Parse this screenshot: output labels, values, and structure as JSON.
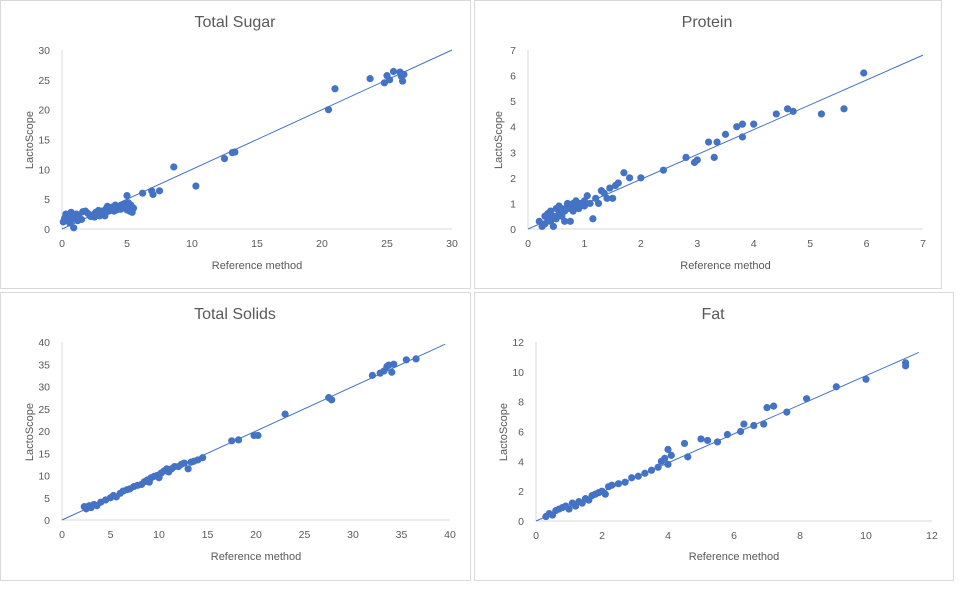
{
  "chart_data": [
    {
      "type": "scatter",
      "title": "Total Sugar",
      "xlabel": "Reference method",
      "ylabel": "LactoScope",
      "xlim": [
        0,
        30
      ],
      "ylim": [
        0,
        30
      ],
      "xticks": [
        0,
        5,
        10,
        15,
        20,
        25,
        30
      ],
      "yticks": [
        0,
        5,
        10,
        15,
        20,
        25,
        30
      ],
      "fit_line": [
        [
          0,
          0
        ],
        [
          30,
          30
        ]
      ],
      "series": [
        {
          "name": "Total Sugar",
          "points": [
            [
              0.1,
              1.2
            ],
            [
              0.2,
              1.8
            ],
            [
              0.3,
              2.5
            ],
            [
              0.4,
              1.5
            ],
            [
              0.5,
              2.2
            ],
            [
              0.6,
              1.0
            ],
            [
              0.7,
              2.8
            ],
            [
              0.8,
              1.6
            ],
            [
              0.9,
              0.2
            ],
            [
              1.0,
              2.0
            ],
            [
              1.1,
              2.5
            ],
            [
              1.2,
              1.4
            ],
            [
              1.3,
              2.3
            ],
            [
              1.5,
              1.6
            ],
            [
              1.6,
              2.9
            ],
            [
              1.8,
              3.0
            ],
            [
              2.0,
              2.6
            ],
            [
              2.2,
              2.1
            ],
            [
              2.4,
              2.4
            ],
            [
              2.5,
              2.0
            ],
            [
              2.6,
              2.8
            ],
            [
              2.7,
              2.5
            ],
            [
              2.8,
              3.1
            ],
            [
              2.9,
              2.2
            ],
            [
              3.0,
              2.6
            ],
            [
              3.1,
              3.0
            ],
            [
              3.2,
              2.8
            ],
            [
              3.3,
              2.2
            ],
            [
              3.4,
              3.4
            ],
            [
              3.5,
              3.8
            ],
            [
              3.6,
              3.0
            ],
            [
              3.7,
              3.2
            ],
            [
              3.8,
              3.5
            ],
            [
              3.9,
              3.7
            ],
            [
              4.0,
              3.0
            ],
            [
              4.1,
              4.0
            ],
            [
              4.2,
              3.2
            ],
            [
              4.3,
              3.5
            ],
            [
              4.4,
              3.6
            ],
            [
              4.5,
              3.3
            ],
            [
              4.6,
              4.0
            ],
            [
              4.7,
              3.8
            ],
            [
              4.8,
              3.5
            ],
            [
              4.9,
              3.4
            ],
            [
              5.0,
              5.6
            ],
            [
              5.1,
              4.4
            ],
            [
              5.2,
              3.0
            ],
            [
              5.3,
              4.0
            ],
            [
              5.4,
              2.8
            ],
            [
              5.5,
              3.5
            ],
            [
              4.8,
              4.2
            ],
            [
              5.2,
              4.1
            ],
            [
              5.0,
              3.2
            ],
            [
              6.2,
              6.0
            ],
            [
              6.9,
              6.4
            ],
            [
              7.0,
              5.8
            ],
            [
              7.5,
              6.4
            ],
            [
              8.6,
              10.4
            ],
            [
              10.3,
              7.2
            ],
            [
              12.5,
              11.8
            ],
            [
              13.1,
              12.8
            ],
            [
              13.3,
              12.9
            ],
            [
              20.5,
              20.0
            ],
            [
              21.0,
              23.5
            ],
            [
              23.7,
              25.2
            ],
            [
              24.8,
              24.5
            ],
            [
              25.0,
              25.7
            ],
            [
              25.2,
              25.0
            ],
            [
              25.5,
              26.4
            ],
            [
              26.0,
              26.3
            ],
            [
              26.1,
              25.6
            ],
            [
              26.2,
              24.8
            ],
            [
              26.3,
              25.9
            ]
          ]
        }
      ]
    },
    {
      "type": "scatter",
      "title": "Protein",
      "xlabel": "Reference method",
      "ylabel": "LactoScope",
      "xlim": [
        0,
        7
      ],
      "ylim": [
        0,
        7
      ],
      "xticks": [
        0,
        1,
        2,
        3,
        4,
        5,
        6,
        7
      ],
      "yticks": [
        0,
        1,
        2,
        3,
        4,
        5,
        6,
        7
      ],
      "fit_line": [
        [
          0,
          0
        ],
        [
          7,
          6.8
        ]
      ],
      "series": [
        {
          "name": "Protein",
          "points": [
            [
              0.2,
              0.3
            ],
            [
              0.25,
              0.1
            ],
            [
              0.3,
              0.5
            ],
            [
              0.3,
              0.2
            ],
            [
              0.35,
              0.4
            ],
            [
              0.35,
              0.6
            ],
            [
              0.4,
              0.3
            ],
            [
              0.4,
              0.7
            ],
            [
              0.45,
              0.5
            ],
            [
              0.45,
              0.1
            ],
            [
              0.5,
              0.8
            ],
            [
              0.5,
              0.4
            ],
            [
              0.55,
              0.6
            ],
            [
              0.55,
              0.9
            ],
            [
              0.6,
              0.5
            ],
            [
              0.6,
              0.8
            ],
            [
              0.65,
              0.7
            ],
            [
              0.65,
              0.3
            ],
            [
              0.7,
              0.9
            ],
            [
              0.7,
              1.0
            ],
            [
              0.75,
              0.8
            ],
            [
              0.75,
              0.3
            ],
            [
              0.8,
              1.0
            ],
            [
              0.8,
              0.7
            ],
            [
              0.85,
              0.9
            ],
            [
              0.85,
              1.1
            ],
            [
              0.9,
              1.0
            ],
            [
              0.9,
              0.8
            ],
            [
              0.95,
              1.0
            ],
            [
              1.0,
              0.9
            ],
            [
              1.0,
              1.1
            ],
            [
              1.05,
              1.3
            ],
            [
              1.1,
              1.0
            ],
            [
              1.15,
              0.4
            ],
            [
              1.2,
              1.2
            ],
            [
              1.25,
              1.0
            ],
            [
              1.3,
              1.5
            ],
            [
              1.35,
              1.4
            ],
            [
              1.4,
              1.2
            ],
            [
              1.45,
              1.6
            ],
            [
              1.5,
              1.2
            ],
            [
              1.55,
              1.7
            ],
            [
              1.6,
              1.8
            ],
            [
              1.7,
              2.2
            ],
            [
              1.8,
              2.0
            ],
            [
              2.0,
              2.0
            ],
            [
              2.4,
              2.3
            ],
            [
              2.8,
              2.8
            ],
            [
              2.95,
              2.6
            ],
            [
              3.0,
              2.7
            ],
            [
              3.2,
              3.4
            ],
            [
              3.3,
              2.8
            ],
            [
              3.35,
              3.4
            ],
            [
              3.5,
              3.7
            ],
            [
              3.7,
              4.0
            ],
            [
              3.8,
              4.1
            ],
            [
              3.8,
              3.6
            ],
            [
              4.0,
              4.1
            ],
            [
              4.4,
              4.5
            ],
            [
              4.6,
              4.7
            ],
            [
              4.7,
              4.6
            ],
            [
              5.2,
              4.5
            ],
            [
              5.6,
              4.7
            ],
            [
              5.95,
              6.1
            ]
          ]
        }
      ]
    },
    {
      "type": "scatter",
      "title": "Total Solids",
      "xlabel": "Reference method",
      "ylabel": "LactoScope",
      "xlim": [
        0,
        40
      ],
      "ylim": [
        0,
        40
      ],
      "xticks": [
        0,
        5,
        10,
        15,
        20,
        25,
        30,
        35,
        40
      ],
      "yticks": [
        0,
        5,
        10,
        15,
        20,
        25,
        30,
        35,
        40
      ],
      "fit_line": [
        [
          0,
          0
        ],
        [
          39.5,
          39.5
        ]
      ],
      "series": [
        {
          "name": "Total Solids",
          "points": [
            [
              2.3,
              3.0
            ],
            [
              2.5,
              2.5
            ],
            [
              2.8,
              3.2
            ],
            [
              3.0,
              2.8
            ],
            [
              3.3,
              3.5
            ],
            [
              3.6,
              3.2
            ],
            [
              4.0,
              4.0
            ],
            [
              4.5,
              4.5
            ],
            [
              5.0,
              5.0
            ],
            [
              5.3,
              5.5
            ],
            [
              5.6,
              5.2
            ],
            [
              6.0,
              6.0
            ],
            [
              6.3,
              6.5
            ],
            [
              6.7,
              6.8
            ],
            [
              7.0,
              7.0
            ],
            [
              7.4,
              7.5
            ],
            [
              7.8,
              7.8
            ],
            [
              8.2,
              8.0
            ],
            [
              8.5,
              8.6
            ],
            [
              8.8,
              9.0
            ],
            [
              9.0,
              8.5
            ],
            [
              9.2,
              9.5
            ],
            [
              9.5,
              9.8
            ],
            [
              9.8,
              10.0
            ],
            [
              10.0,
              9.5
            ],
            [
              10.2,
              10.5
            ],
            [
              10.5,
              11.0
            ],
            [
              10.8,
              11.5
            ],
            [
              11.0,
              10.8
            ],
            [
              11.3,
              11.5
            ],
            [
              11.6,
              12.0
            ],
            [
              12.0,
              12.0
            ],
            [
              12.3,
              12.5
            ],
            [
              12.6,
              12.8
            ],
            [
              13.0,
              11.5
            ],
            [
              13.3,
              13.0
            ],
            [
              13.6,
              13.2
            ],
            [
              14.0,
              13.5
            ],
            [
              14.5,
              14.0
            ],
            [
              17.5,
              17.8
            ],
            [
              18.2,
              18.0
            ],
            [
              19.8,
              19.0
            ],
            [
              20.2,
              19.0
            ],
            [
              23.0,
              23.8
            ],
            [
              27.5,
              27.5
            ],
            [
              27.8,
              27.0
            ],
            [
              32.0,
              32.5
            ],
            [
              32.8,
              33.0
            ],
            [
              33.2,
              33.5
            ],
            [
              33.5,
              34.5
            ],
            [
              33.7,
              34.8
            ],
            [
              34.0,
              33.2
            ],
            [
              34.2,
              35.0
            ],
            [
              35.5,
              36.0
            ],
            [
              36.5,
              36.2
            ]
          ]
        }
      ]
    },
    {
      "type": "scatter",
      "title": "Fat",
      "xlabel": "Reference method",
      "ylabel": "LactoScope",
      "xlim": [
        0,
        12
      ],
      "ylim": [
        0,
        12
      ],
      "xticks": [
        0,
        2,
        4,
        6,
        8,
        10,
        12
      ],
      "yticks": [
        0,
        2,
        4,
        6,
        8,
        10,
        12
      ],
      "fit_line": [
        [
          0,
          0
        ],
        [
          11.6,
          11.3
        ]
      ],
      "series": [
        {
          "name": "Fat",
          "points": [
            [
              0.3,
              0.3
            ],
            [
              0.4,
              0.5
            ],
            [
              0.5,
              0.4
            ],
            [
              0.6,
              0.7
            ],
            [
              0.7,
              0.8
            ],
            [
              0.8,
              0.9
            ],
            [
              0.9,
              1.0
            ],
            [
              1.0,
              0.8
            ],
            [
              1.1,
              1.2
            ],
            [
              1.2,
              1.0
            ],
            [
              1.3,
              1.3
            ],
            [
              1.4,
              1.2
            ],
            [
              1.5,
              1.5
            ],
            [
              1.6,
              1.4
            ],
            [
              1.7,
              1.7
            ],
            [
              1.8,
              1.8
            ],
            [
              1.9,
              1.9
            ],
            [
              2.0,
              2.0
            ],
            [
              2.1,
              1.8
            ],
            [
              2.2,
              2.3
            ],
            [
              2.3,
              2.4
            ],
            [
              2.5,
              2.5
            ],
            [
              2.7,
              2.6
            ],
            [
              2.9,
              2.9
            ],
            [
              3.1,
              3.0
            ],
            [
              3.3,
              3.2
            ],
            [
              3.5,
              3.4
            ],
            [
              3.7,
              3.6
            ],
            [
              3.8,
              4.0
            ],
            [
              3.9,
              4.2
            ],
            [
              4.0,
              4.8
            ],
            [
              4.0,
              3.8
            ],
            [
              4.1,
              4.4
            ],
            [
              4.5,
              5.2
            ],
            [
              4.6,
              4.3
            ],
            [
              5.0,
              5.5
            ],
            [
              5.2,
              5.4
            ],
            [
              5.5,
              5.3
            ],
            [
              5.8,
              5.8
            ],
            [
              6.2,
              6.0
            ],
            [
              6.3,
              6.5
            ],
            [
              6.6,
              6.4
            ],
            [
              6.9,
              6.5
            ],
            [
              7.0,
              7.6
            ],
            [
              7.2,
              7.7
            ],
            [
              7.6,
              7.3
            ],
            [
              8.2,
              8.2
            ],
            [
              9.1,
              9.0
            ],
            [
              10.0,
              9.5
            ],
            [
              11.2,
              10.6
            ],
            [
              11.2,
              10.4
            ]
          ]
        }
      ]
    }
  ]
}
